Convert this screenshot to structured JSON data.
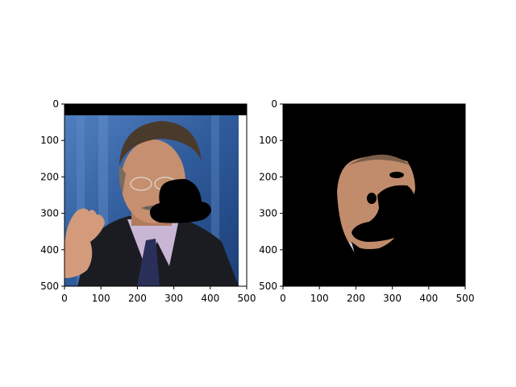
{
  "chart_data": [
    {
      "type": "image",
      "title": "",
      "xlim": [
        0,
        500
      ],
      "ylim": [
        500,
        0
      ],
      "xticks": [
        0,
        100,
        200,
        300,
        400,
        500
      ],
      "yticks": [
        0,
        100,
        200,
        300,
        400,
        500
      ],
      "content": "photo-with-black-mask-occlusion"
    },
    {
      "type": "image",
      "title": "",
      "xlim": [
        0,
        500
      ],
      "ylim": [
        500,
        0
      ],
      "xticks": [
        0,
        100,
        200,
        300,
        400,
        500
      ],
      "yticks": [
        0,
        100,
        200,
        300,
        400,
        500
      ],
      "content": "segmented-face-on-black"
    }
  ],
  "colors": {
    "axis": "#000000",
    "background": "#ffffff",
    "mask": "#000000",
    "suit": "#1b1c22",
    "skin": "#c68f6f",
    "hair": "#4a3a2c",
    "backdrop": "#3d68a8"
  }
}
